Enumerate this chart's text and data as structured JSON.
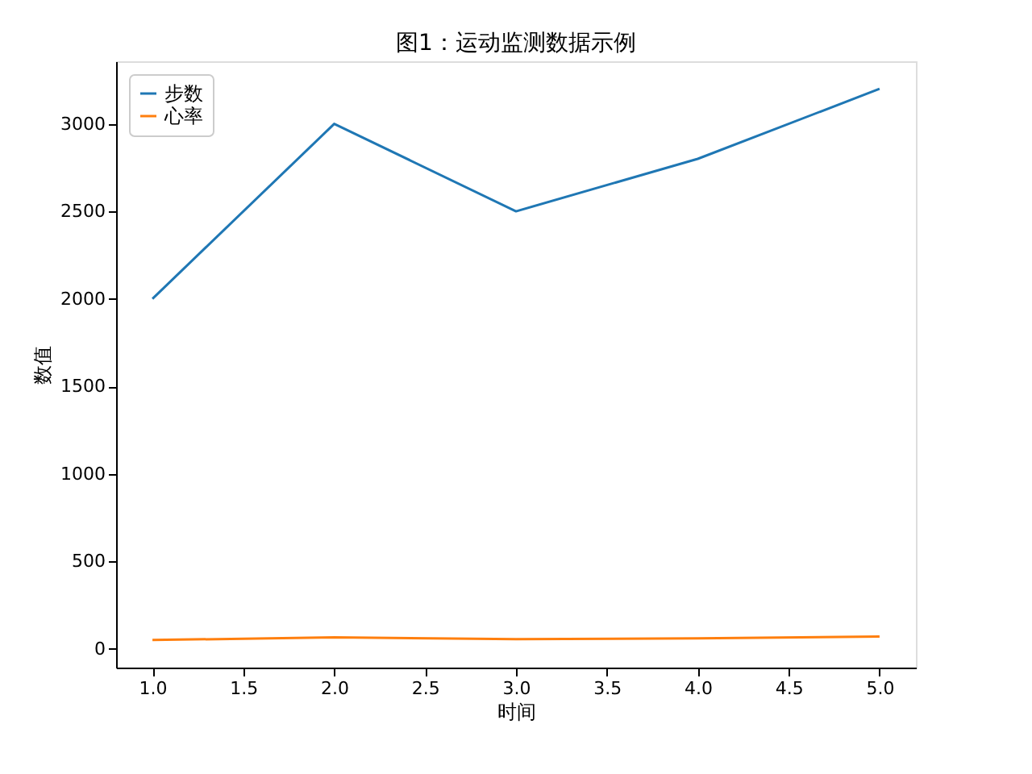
{
  "chart_data": {
    "type": "line",
    "title": "图1：运动监测数据示例",
    "xlabel": "时间",
    "ylabel": "数值",
    "x": [
      1,
      2,
      3,
      4,
      5
    ],
    "series": [
      {
        "name": "步数",
        "color": "#1f77b4",
        "values": [
          2000,
          3000,
          2500,
          2800,
          3200
        ]
      },
      {
        "name": "心率",
        "color": "#ff7f0e",
        "values": [
          50,
          65,
          55,
          60,
          70
        ]
      }
    ],
    "xlim": [
      0.8,
      5.2
    ],
    "xticks": [
      {
        "value": 1,
        "label": "1.0"
      },
      {
        "value": 1.5,
        "label": "1.5"
      },
      {
        "value": 2,
        "label": "2.0"
      },
      {
        "value": 2.5,
        "label": "2.5"
      },
      {
        "value": 3,
        "label": "3.0"
      },
      {
        "value": 3.5,
        "label": "3.5"
      },
      {
        "value": 4,
        "label": "4.0"
      },
      {
        "value": 4.5,
        "label": "4.5"
      },
      {
        "value": 5,
        "label": "5.0"
      }
    ],
    "ylim": [
      -107.5,
      3357.5
    ],
    "yticks": [
      0,
      500,
      1000,
      1500,
      2000,
      2500,
      3000
    ],
    "grid": false,
    "legend": "top left",
    "marker": "none",
    "line_style": "solid"
  }
}
